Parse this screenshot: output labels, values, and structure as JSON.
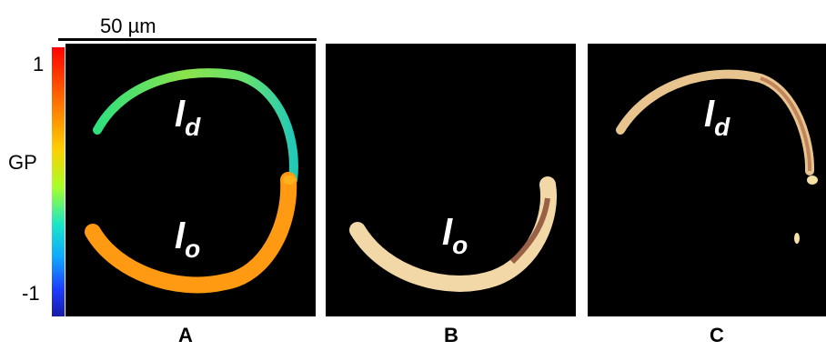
{
  "scalebar": {
    "label": "50 µm"
  },
  "colorbar": {
    "title": "GP",
    "max_label": "1",
    "min_label": "-1"
  },
  "panels": [
    {
      "id": "A",
      "label": "A",
      "ld": {
        "main": "l",
        "sub": "d"
      },
      "lo": {
        "main": "l",
        "sub": "o"
      }
    },
    {
      "id": "B",
      "label": "B",
      "lo": {
        "main": "l",
        "sub": "o"
      }
    },
    {
      "id": "C",
      "label": "C",
      "ld": {
        "main": "l",
        "sub": "d"
      }
    }
  ],
  "colors": {
    "lo_orange": "#ff9a12",
    "ld_green": "#6fe45a",
    "ld_cyan": "#22d6b7",
    "cream": "#f2d7a7",
    "background": "#000000"
  }
}
